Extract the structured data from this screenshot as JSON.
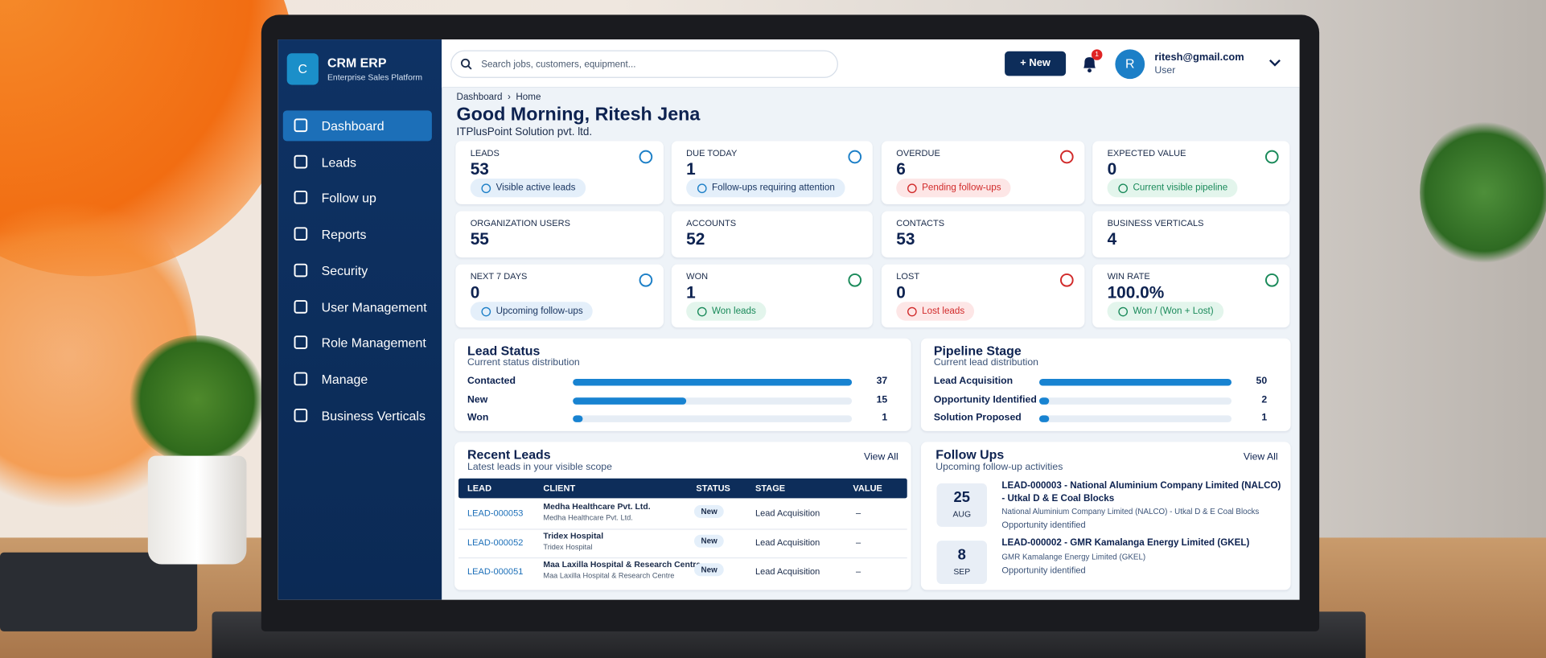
{
  "sidebar": {
    "brand": {
      "icon": "C",
      "name": "CRM ERP",
      "tagline": "Enterprise Sales Platform"
    },
    "nav": [
      "Dashboard",
      "Leads",
      "Follow up",
      "Reports",
      "Security",
      "User Management",
      "Role Management",
      "Manage",
      "Business Verticals"
    ],
    "active": 0
  },
  "topbar": {
    "search_placeholder": "Search jobs, customers, equipment...",
    "new_button": "New",
    "notification_count": 1,
    "user": {
      "initial": "R",
      "email": "ritesh@gmail.com",
      "role": "User"
    }
  },
  "breadcrumb": [
    "Dashboard",
    "Home"
  ],
  "greeting": "Good Morning, Ritesh Jena",
  "organization": "ITPlusPoint Solution pvt. ltd.",
  "stat_cards": [
    {
      "label": "LEADS",
      "value": 53,
      "badge": "Visible active leads",
      "tone": "blue"
    },
    {
      "label": "DUE TODAY",
      "value": 1,
      "badge": "Follow-ups requiring attention",
      "tone": "blue"
    },
    {
      "label": "OVERDUE",
      "value": 6,
      "badge": "Pending follow-ups",
      "tone": "red"
    },
    {
      "label": "EXPECTED VALUE",
      "value": 0,
      "badge": "Current visible pipeline",
      "tone": "green"
    },
    {
      "label": "ORGANIZATION USERS",
      "value": 55
    },
    {
      "label": "ACCOUNTS",
      "value": 52
    },
    {
      "label": "CONTACTS",
      "value": 53
    },
    {
      "label": "BUSINESS VERTICALS",
      "value": 4
    },
    {
      "label": "NEXT 7 DAYS",
      "value": 0,
      "badge": "Upcoming follow-ups",
      "tone": "blue"
    },
    {
      "label": "WON",
      "value": 1,
      "badge": "Won leads",
      "tone": "green"
    },
    {
      "label": "LOST",
      "value": 0,
      "badge": "Lost leads",
      "tone": "red"
    },
    {
      "label": "WIN RATE",
      "value": "100.0%",
      "badge": "Won / (Won + Lost)",
      "tone": "green"
    }
  ],
  "lead_status": {
    "title": "Lead Status",
    "subtitle": "Current status distribution",
    "rows": [
      {
        "label": "Contacted",
        "value": 37
      },
      {
        "label": "New",
        "value": 15
      },
      {
        "label": "Won",
        "value": 1
      }
    ]
  },
  "pipeline_stage": {
    "title": "Pipeline Stage",
    "subtitle": "Current lead distribution",
    "rows": [
      {
        "label": "Lead Acquisition",
        "value": 50
      },
      {
        "label": "Opportunity Identified",
        "value": 2
      },
      {
        "label": "Solution Proposed",
        "value": 1
      }
    ]
  },
  "recent_leads": {
    "title": "Recent Leads",
    "subtitle": "Latest leads in your visible scope",
    "view_all": "View All",
    "columns": [
      "LEAD",
      "CLIENT",
      "STATUS",
      "STAGE",
      "VALUE"
    ],
    "rows": [
      {
        "lead": "LEAD-000053",
        "client": "Medha Healthcare Pvt. Ltd.",
        "client_sub": "Medha Healthcare Pvt. Ltd.",
        "status": "New",
        "stage": "Lead Acquisition",
        "value": "–"
      },
      {
        "lead": "LEAD-000052",
        "client": "Tridex Hospital",
        "client_sub": "Tridex Hospital",
        "status": "New",
        "stage": "Lead Acquisition",
        "value": "–"
      },
      {
        "lead": "LEAD-000051",
        "client": "Maa Laxilla Hospital & Research Centre",
        "client_sub": "Maa Laxilla Hospital & Research Centre",
        "status": "New",
        "stage": "Lead Acquisition",
        "value": "–"
      }
    ]
  },
  "follow_ups": {
    "title": "Follow Ups",
    "subtitle": "Upcoming follow-up activities",
    "view_all": "View All",
    "items": [
      {
        "day": 25,
        "month": "AUG",
        "title": "LEAD-000003 - National Aluminium Company Limited (NALCO) - Utkal D & E Coal Blocks",
        "subtitle": "National Aluminium Company Limited (NALCO) - Utkal D & E Coal Blocks",
        "note": "Opportunity identified"
      },
      {
        "day": 8,
        "month": "SEP",
        "title": "LEAD-000002 - GMR Kamalanga Energy Limited (GKEL)",
        "subtitle": "GMR Kamalange Energy Limited (GKEL)",
        "note": "Opportunity identified"
      }
    ]
  }
}
